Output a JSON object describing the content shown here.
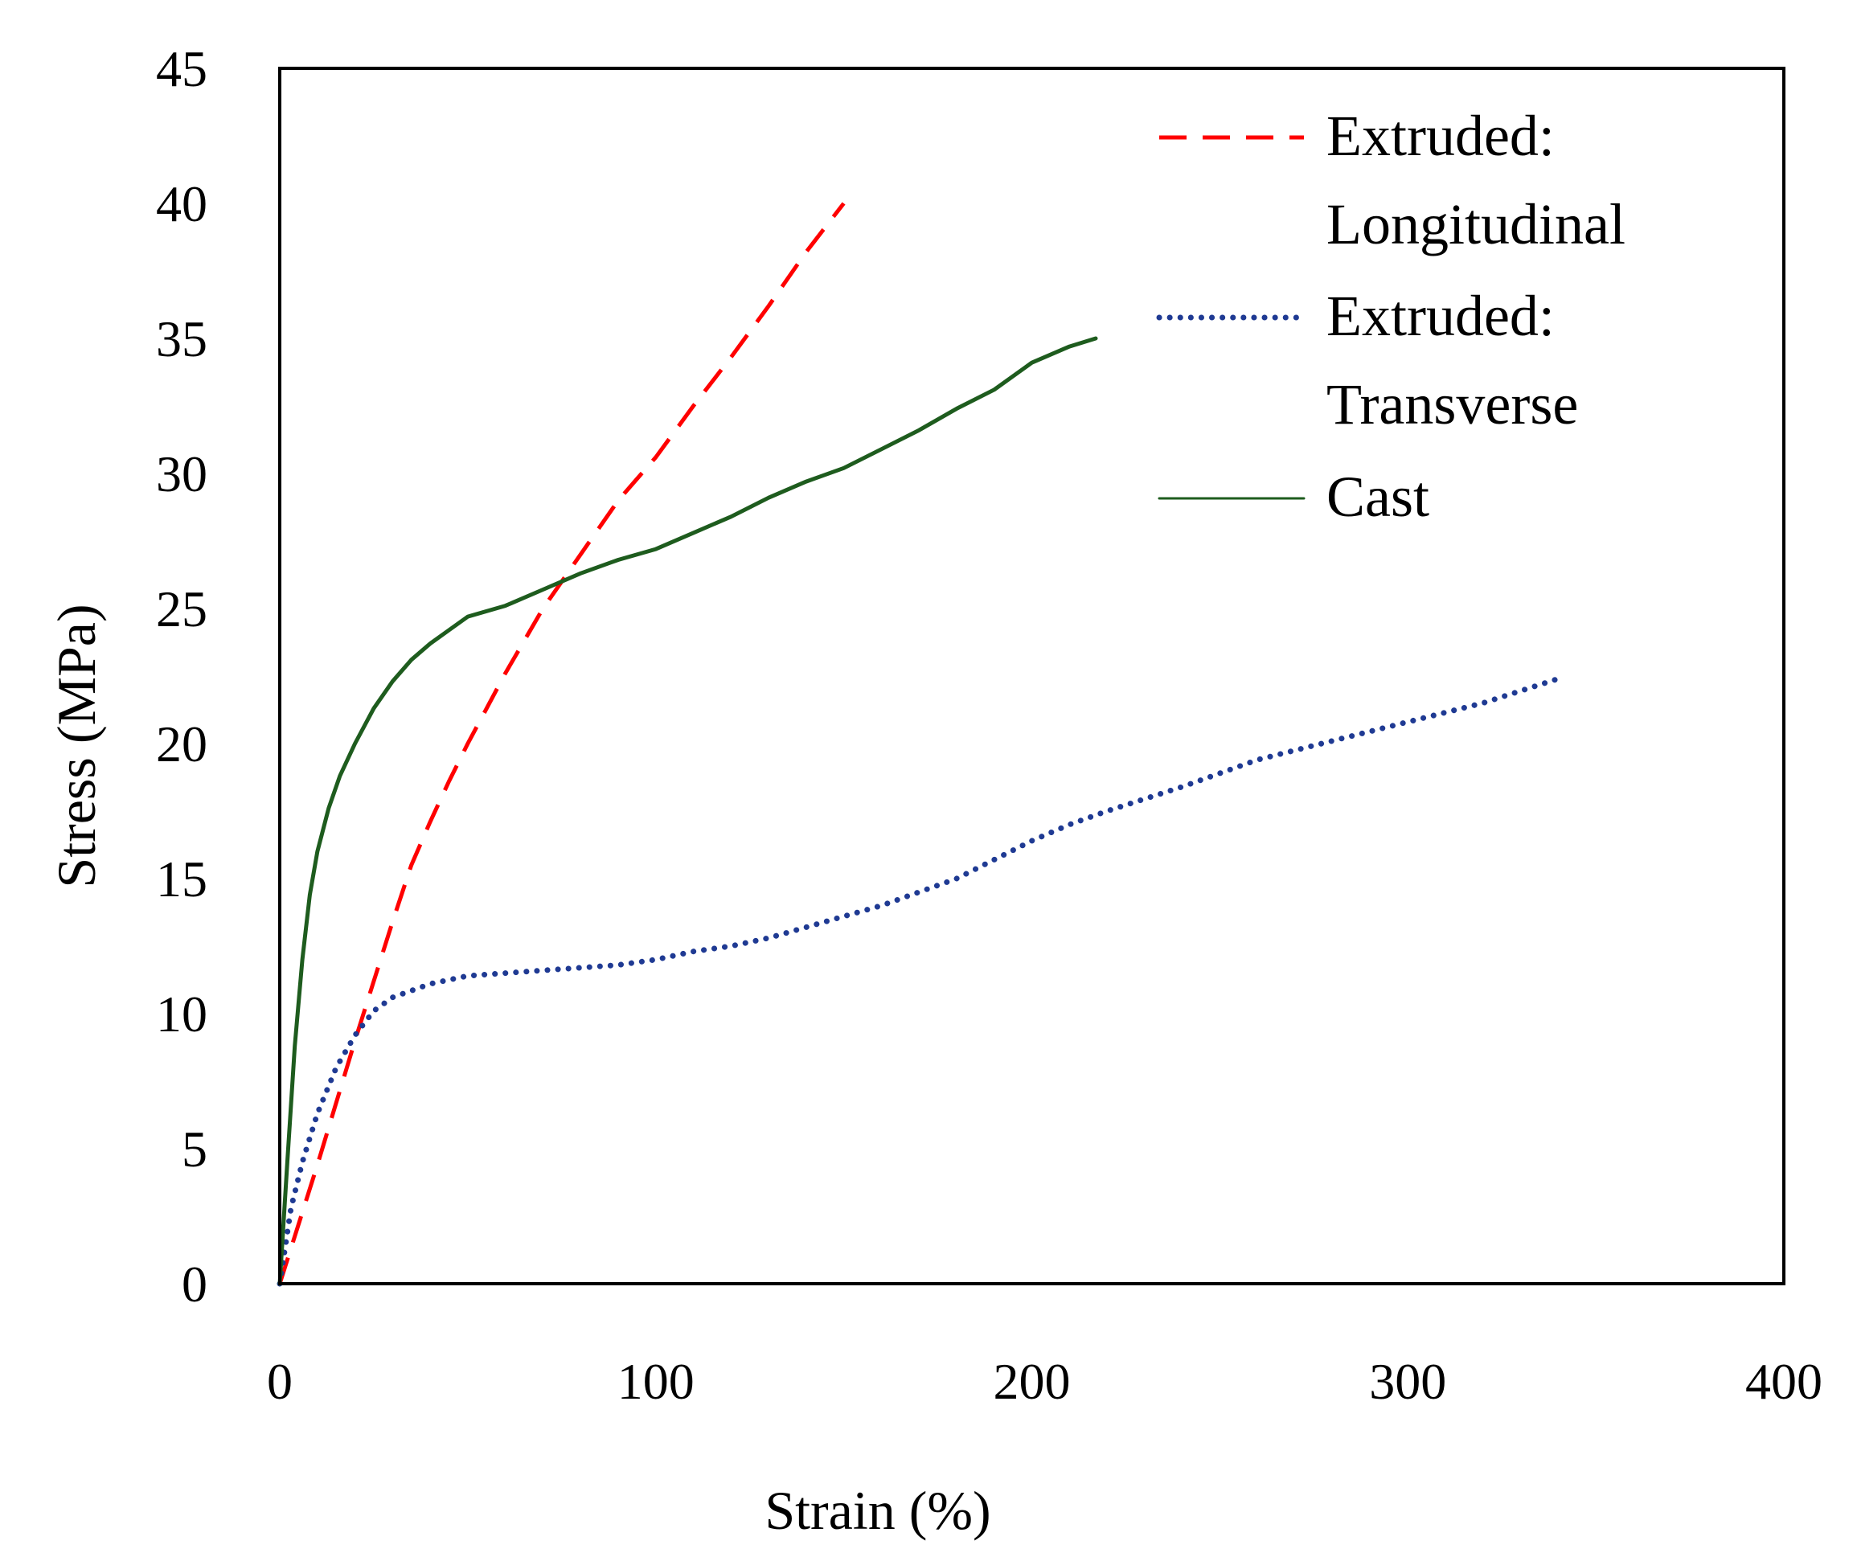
{
  "chart_data": {
    "type": "line",
    "title": "",
    "xlabel": "Strain (%)",
    "ylabel": "Stress (MPa)",
    "xlim": [
      0,
      400
    ],
    "ylim": [
      0,
      45
    ],
    "xticks": [
      0,
      100,
      200,
      300,
      400
    ],
    "yticks": [
      0,
      5,
      10,
      15,
      20,
      25,
      30,
      35,
      40,
      45
    ],
    "grid": false,
    "legend_position": "top-right",
    "series": [
      {
        "name": "Extruded: Longitudinal",
        "legend_lines": [
          "Extruded:",
          "Longitudinal"
        ],
        "color": "#ff0000",
        "style": "dashed",
        "x": [
          0,
          5,
          10,
          15,
          20,
          25,
          30,
          35,
          40,
          45,
          50,
          55,
          60,
          65,
          70,
          75,
          80,
          85,
          90,
          95,
          100,
          110,
          120,
          130,
          140,
          145,
          150
        ],
        "y": [
          0,
          2.2,
          4.4,
          6.7,
          9.0,
          11.2,
          13.4,
          15.5,
          17.1,
          18.6,
          20.0,
          21.3,
          22.6,
          23.8,
          25.0,
          26.0,
          27.0,
          28.0,
          29.0,
          29.8,
          30.6,
          32.5,
          34.3,
          36.2,
          38.2,
          39.1,
          40.0
        ]
      },
      {
        "name": "Extruded: Transverse",
        "legend_lines": [
          "Extruded:",
          "Transverse"
        ],
        "color": "#1f3a93",
        "style": "dotted",
        "x": [
          0,
          3,
          6,
          10,
          15,
          20,
          25,
          30,
          40,
          50,
          60,
          70,
          80,
          90,
          100,
          110,
          120,
          130,
          140,
          150,
          160,
          170,
          180,
          190,
          200,
          210,
          220,
          240,
          260,
          280,
          300,
          320,
          340
        ],
        "y": [
          0,
          2.8,
          4.5,
          6.3,
          8.0,
          9.2,
          10.1,
          10.6,
          11.1,
          11.4,
          11.5,
          11.6,
          11.7,
          11.8,
          12.0,
          12.3,
          12.5,
          12.8,
          13.2,
          13.6,
          14.0,
          14.5,
          15.0,
          15.7,
          16.4,
          17.0,
          17.5,
          18.4,
          19.4,
          20.1,
          20.8,
          21.5,
          22.4
        ]
      },
      {
        "name": "Cast",
        "legend_lines": [
          "Cast"
        ],
        "color": "#1e5c1e",
        "style": "solid",
        "x": [
          0,
          2,
          4,
          6,
          8,
          10,
          13,
          16,
          20,
          25,
          30,
          35,
          40,
          45,
          50,
          60,
          70,
          80,
          90,
          100,
          110,
          120,
          130,
          140,
          150,
          160,
          170,
          180,
          190,
          200,
          210,
          217
        ],
        "y": [
          0,
          4.5,
          8.8,
          12.0,
          14.4,
          16.0,
          17.6,
          18.8,
          20.0,
          21.3,
          22.3,
          23.1,
          23.7,
          24.2,
          24.7,
          25.1,
          25.7,
          26.3,
          26.8,
          27.2,
          27.8,
          28.4,
          29.1,
          29.7,
          30.2,
          30.9,
          31.6,
          32.4,
          33.1,
          34.1,
          34.7,
          35.0
        ]
      }
    ]
  }
}
